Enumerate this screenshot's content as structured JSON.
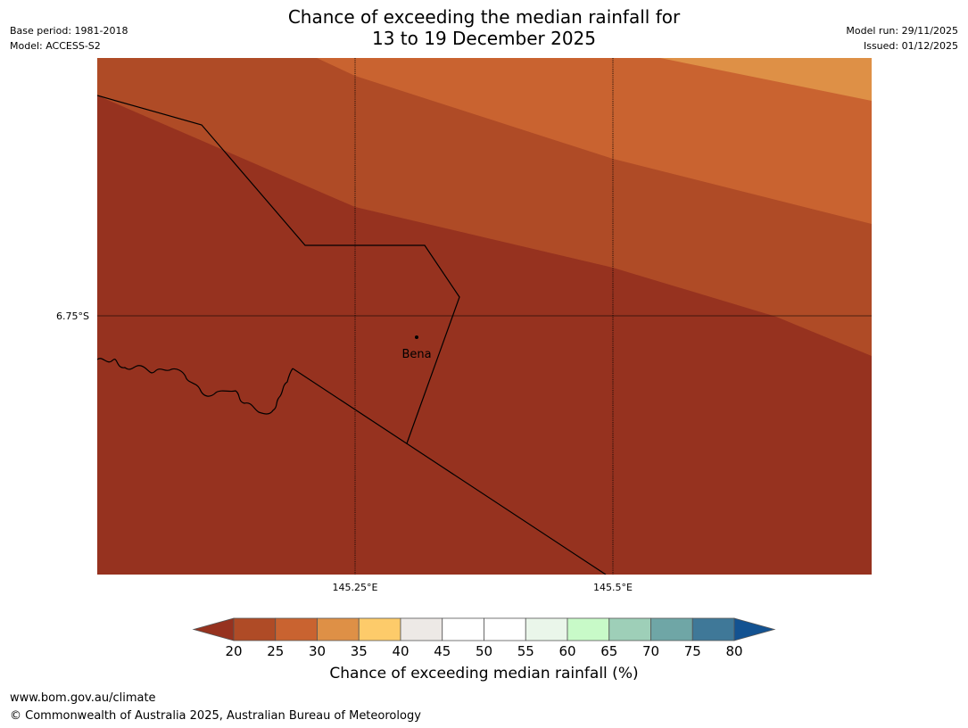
{
  "header": {
    "title_line1": "Chance of exceeding the median rainfall for",
    "title_line2": "13 to 19 December 2025",
    "base_period": "Base period: 1981-2018",
    "model": "Model: ACCESS-S2",
    "model_run": "Model run: 29/11/2025",
    "issued": "Issued: 01/12/2025"
  },
  "map": {
    "lat_label": "6.75°S",
    "lon_labels": [
      "145.25°E",
      "145.5°E"
    ],
    "place_label": "Bena",
    "zone_colors": {
      "band_20_25": "#96321f",
      "band_25_30": "#af4b26",
      "band_30_35": "#c96330",
      "band_35_40": "#de9046"
    }
  },
  "colorbar": {
    "label": "Chance of exceeding median rainfall (%)",
    "ticks": [
      "20",
      "25",
      "30",
      "35",
      "40",
      "45",
      "50",
      "55",
      "60",
      "65",
      "70",
      "75",
      "80"
    ],
    "under_color": "#96321f",
    "over_color": "#135291",
    "colors": [
      "#af4b26",
      "#c96330",
      "#de9046",
      "#fdcb6a",
      "#ede9e6",
      "#ffffff",
      "#ffffff",
      "#eaf6ea",
      "#c8fac8",
      "#9ecfb8",
      "#6fa6a6",
      "#3f7898"
    ]
  },
  "footer": {
    "url": "www.bom.gov.au/climate",
    "copyright": "© Commonwealth of Australia 2025, Australian Bureau of Meteorology"
  }
}
